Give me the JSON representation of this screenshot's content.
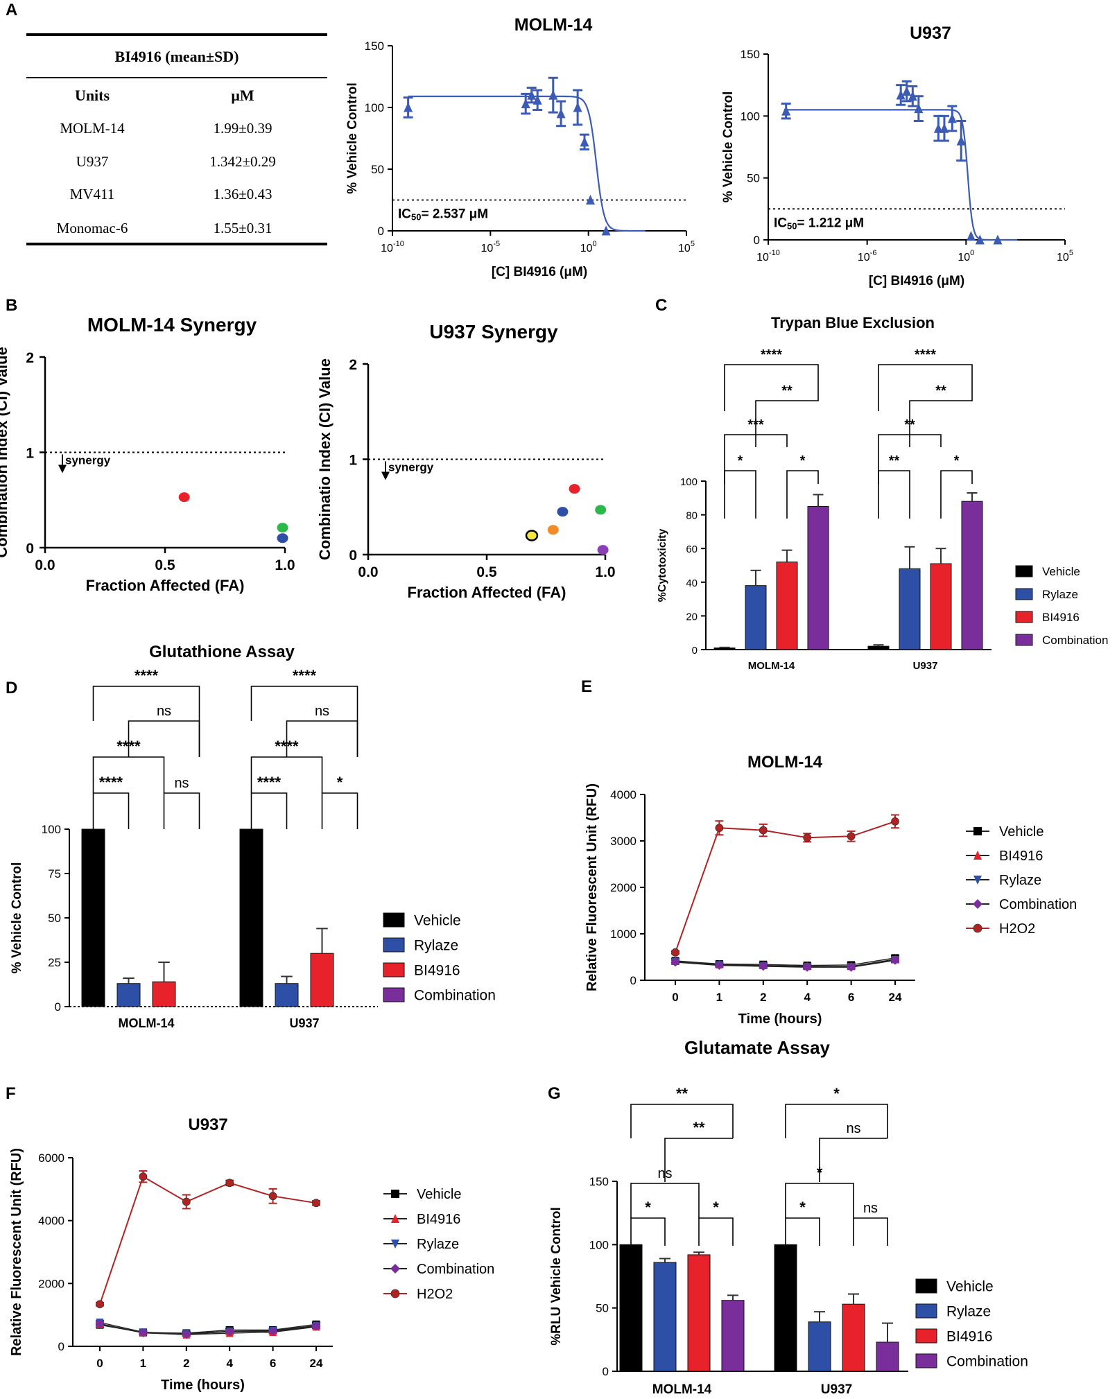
{
  "panel_labels": [
    "A",
    "B",
    "C",
    "D",
    "E",
    "F",
    "G"
  ],
  "table": {
    "title": "BI4916 (mean±SD)",
    "col_headers": [
      "Units",
      "μM"
    ],
    "rows": [
      [
        "MOLM-14",
        "1.99±0.39"
      ],
      [
        "U937",
        "1.342±0.29"
      ],
      [
        "MV411",
        "1.36±0.43"
      ],
      [
        "Monomac-6",
        "1.55±0.31"
      ]
    ]
  },
  "colors": {
    "vehicle": "#000000",
    "rylaze": "#2e4fa6",
    "bi4916": "#e8222a",
    "combination": "#7a2e9c",
    "h2o2": "#b22222",
    "curve": "#3b5bb5",
    "ci_red": "#e8222a",
    "ci_green": "#2db84b",
    "ci_blue": "#2e4fa6",
    "ci_orange": "#f28c28",
    "ci_purple": "#8a3fb8",
    "ci_yellow": "#f5e642"
  },
  "chart_data": [
    {
      "id": "A1",
      "type": "scatter",
      "title": "MOLM-14",
      "xlabel": "[C] BI4916 (μM)",
      "ylabel": "% Vehicle Control",
      "xticks": [
        "-10",
        "-5",
        "0",
        "5"
      ],
      "yticks": [
        "0",
        "50",
        "100",
        "150"
      ],
      "xlim": [
        -10,
        5
      ],
      "ylim": [
        0,
        150
      ],
      "annotation": "= 2.537 μM",
      "ic_label": "IC",
      "ic_sub": "50",
      "ref_lines": [
        25,
        0
      ],
      "curve": {
        "top": 109,
        "bottom": 0,
        "logIC50": 0.404,
        "hill": 2.2
      },
      "points": [
        {
          "x": -9.2,
          "y": 100,
          "err": 8
        },
        {
          "x": -3.2,
          "y": 103,
          "err": 8
        },
        {
          "x": -2.9,
          "y": 110,
          "err": 6
        },
        {
          "x": -2.6,
          "y": 106,
          "err": 8
        },
        {
          "x": -1.8,
          "y": 110,
          "err": 14
        },
        {
          "x": -1.4,
          "y": 95,
          "err": 10
        },
        {
          "x": -0.55,
          "y": 100,
          "err": 14
        },
        {
          "x": -0.2,
          "y": 72,
          "err": 6
        },
        {
          "x": 0.1,
          "y": 25,
          "err": 0
        },
        {
          "x": 0.9,
          "y": 0,
          "err": 0
        }
      ]
    },
    {
      "id": "A2",
      "type": "scatter",
      "title": "U937",
      "xlabel": "[C] BI4916 (μM)",
      "ylabel": "% Vehicle Control",
      "xticks": [
        "-10",
        "-6",
        "0",
        "5"
      ],
      "yticks": [
        "0",
        "50",
        "100",
        "150"
      ],
      "xlim": [
        -10,
        5
      ],
      "ylim": [
        0,
        150
      ],
      "annotation": "= 1.212 μM",
      "ic_label": "IC",
      "ic_sub": "50",
      "ref_lines": [
        25,
        0
      ],
      "curve": {
        "top": 105,
        "bottom": 0,
        "logIC50": 0.084,
        "hill": 3.5
      },
      "points": [
        {
          "x": -9.1,
          "y": 104,
          "err": 6
        },
        {
          "x": -3.3,
          "y": 117,
          "err": 8
        },
        {
          "x": -3.0,
          "y": 120,
          "err": 8
        },
        {
          "x": -2.7,
          "y": 116,
          "err": 8
        },
        {
          "x": -2.4,
          "y": 106,
          "err": 10
        },
        {
          "x": -1.4,
          "y": 90,
          "err": 10
        },
        {
          "x": -1.1,
          "y": 90,
          "err": 10
        },
        {
          "x": -0.7,
          "y": 98,
          "err": 10
        },
        {
          "x": -0.25,
          "y": 80,
          "err": 16
        },
        {
          "x": 0.25,
          "y": 3,
          "err": 0
        },
        {
          "x": 0.7,
          "y": 0,
          "err": 0
        },
        {
          "x": 1.6,
          "y": 0,
          "err": 0
        }
      ]
    },
    {
      "id": "B1",
      "type": "scatter",
      "title": "MOLM-14 Synergy",
      "xlabel": "Fraction Affected (FA)",
      "ylabel": "Combination Index (CI) Value",
      "xticks": [
        "0.0",
        "0.5",
        "1.0"
      ],
      "yticks": [
        "0",
        "1",
        "2"
      ],
      "xlim": [
        0,
        1
      ],
      "ylim": [
        0,
        2
      ],
      "ref_line": 1,
      "annotation": "synergy",
      "points": [
        {
          "x": 0.58,
          "y": 0.53,
          "color": "ci_red"
        },
        {
          "x": 0.99,
          "y": 0.21,
          "color": "ci_green"
        },
        {
          "x": 0.99,
          "y": 0.1,
          "color": "ci_blue"
        }
      ]
    },
    {
      "id": "B2",
      "type": "scatter",
      "title": "U937 Synergy",
      "xlabel": "Fraction Affected (FA)",
      "ylabel": "Combinatio Index (CI) Value",
      "xticks": [
        "0.0",
        "0.5",
        "1.0"
      ],
      "yticks": [
        "0",
        "1",
        "2"
      ],
      "xlim": [
        0,
        1
      ],
      "ylim": [
        0,
        2
      ],
      "ref_line": 1,
      "annotation": "synergy",
      "points": [
        {
          "x": 0.87,
          "y": 0.69,
          "color": "ci_red"
        },
        {
          "x": 0.98,
          "y": 0.47,
          "color": "ci_green"
        },
        {
          "x": 0.82,
          "y": 0.45,
          "color": "ci_blue"
        },
        {
          "x": 0.78,
          "y": 0.26,
          "color": "ci_orange"
        },
        {
          "x": 0.69,
          "y": 0.2,
          "color": "ci_yellow"
        },
        {
          "x": 0.99,
          "y": 0.05,
          "color": "ci_purple"
        }
      ]
    },
    {
      "id": "C",
      "type": "bar",
      "title": "Trypan Blue Exclusion",
      "xlabel": "",
      "ylabel": "%Cytotoxicity",
      "categories": [
        "MOLM-14",
        "U937"
      ],
      "yticks": [
        "0",
        "20",
        "40",
        "60",
        "80",
        "100"
      ],
      "ylim": [
        0,
        100
      ],
      "series": [
        {
          "name": "Vehicle",
          "color": "vehicle",
          "values": [
            1,
            2
          ],
          "err": [
            0.3,
            0.8
          ]
        },
        {
          "name": "Rylaze",
          "color": "rylaze",
          "values": [
            38,
            48
          ],
          "err": [
            9,
            13
          ]
        },
        {
          "name": "BI4916",
          "color": "bi4916",
          "values": [
            52,
            51
          ],
          "err": [
            7,
            9
          ]
        },
        {
          "name": "Combination",
          "color": "combination",
          "values": [
            85,
            88
          ],
          "err": [
            7,
            5
          ]
        }
      ],
      "sig": [
        [
          "****",
          "****"
        ],
        [
          "**",
          "**"
        ],
        [
          "***",
          "**"
        ],
        [
          "*",
          "**"
        ],
        [
          "*",
          "*"
        ]
      ]
    },
    {
      "id": "D",
      "type": "bar",
      "title": "Glutathione Assay",
      "xlabel": "",
      "ylabel": "% Vehicle Control",
      "categories": [
        "MOLM-14",
        "U937"
      ],
      "yticks": [
        "0",
        "25",
        "50",
        "75",
        "100"
      ],
      "ylim": [
        0,
        100
      ],
      "series": [
        {
          "name": "Vehicle",
          "color": "vehicle",
          "values": [
            100,
            100
          ],
          "err": [
            0,
            0
          ]
        },
        {
          "name": "Rylaze",
          "color": "rylaze",
          "values": [
            13,
            13
          ],
          "err": [
            3,
            4
          ]
        },
        {
          "name": "BI4916",
          "color": "bi4916",
          "values": [
            14,
            30
          ],
          "err": [
            11,
            14
          ]
        },
        {
          "name": "Combination",
          "color": "combination",
          "values": [
            0,
            0
          ],
          "err": [
            0,
            0
          ]
        }
      ],
      "sig": [
        [
          "****",
          "****"
        ],
        [
          "ns",
          "ns"
        ],
        [
          "****",
          "****"
        ],
        [
          "****",
          "****"
        ],
        [
          "ns",
          "*"
        ]
      ]
    },
    {
      "id": "E",
      "type": "line",
      "title": "MOLM-14",
      "xlabel": "Time (hours)",
      "ylabel": "Relative Fluorescent Unit (RFU)",
      "x": [
        "0",
        "1",
        "2",
        "4",
        "6",
        "24"
      ],
      "yticks": [
        "0",
        "1000",
        "2000",
        "3000",
        "4000"
      ],
      "ylim": [
        0,
        4000
      ],
      "series": [
        {
          "name": "Vehicle",
          "color": "vehicle",
          "marker": "square",
          "values": [
            420,
            350,
            340,
            320,
            330,
            480
          ],
          "err": [
            40,
            40,
            40,
            40,
            40,
            50
          ]
        },
        {
          "name": "BI4916",
          "color": "bi4916",
          "marker": "triangle",
          "values": [
            410,
            340,
            320,
            300,
            300,
            450
          ],
          "err": [
            40,
            40,
            40,
            40,
            40,
            50
          ]
        },
        {
          "name": "Rylaze",
          "color": "rylaze",
          "marker": "triangle-down",
          "values": [
            400,
            330,
            310,
            290,
            290,
            440
          ],
          "err": [
            40,
            40,
            40,
            40,
            40,
            50
          ]
        },
        {
          "name": "Combination",
          "color": "combination",
          "marker": "diamond",
          "values": [
            390,
            320,
            300,
            280,
            280,
            430
          ],
          "err": [
            40,
            40,
            40,
            40,
            40,
            50
          ]
        },
        {
          "name": "H2O2",
          "color": "h2o2",
          "marker": "circle",
          "values": [
            600,
            3280,
            3230,
            3070,
            3100,
            3420
          ],
          "err": [
            30,
            150,
            130,
            90,
            110,
            140
          ]
        }
      ]
    },
    {
      "id": "F",
      "type": "line",
      "title": "U937",
      "xlabel": "Time (hours)",
      "ylabel": "Relative Fluorescent Unit (RFU)",
      "x": [
        "0",
        "1",
        "2",
        "4",
        "6",
        "24"
      ],
      "yticks": [
        "0",
        "2000",
        "4000",
        "6000"
      ],
      "ylim": [
        0,
        6000
      ],
      "series": [
        {
          "name": "Vehicle",
          "color": "vehicle",
          "marker": "square",
          "values": [
            680,
            440,
            420,
            520,
            520,
            700
          ],
          "err": [
            60,
            50,
            50,
            50,
            50,
            60
          ]
        },
        {
          "name": "BI4916",
          "color": "bi4916",
          "marker": "triangle",
          "values": [
            700,
            430,
            370,
            420,
            450,
            620
          ],
          "err": [
            60,
            50,
            50,
            50,
            50,
            60
          ]
        },
        {
          "name": "Rylaze",
          "color": "rylaze",
          "marker": "triangle-down",
          "values": [
            760,
            450,
            400,
            480,
            500,
            660
          ],
          "err": [
            60,
            50,
            50,
            50,
            50,
            60
          ]
        },
        {
          "name": "Combination",
          "color": "combination",
          "marker": "diamond",
          "values": [
            720,
            430,
            380,
            470,
            480,
            640
          ],
          "err": [
            60,
            50,
            50,
            50,
            50,
            60
          ]
        },
        {
          "name": "H2O2",
          "color": "h2o2",
          "marker": "circle",
          "values": [
            1340,
            5400,
            4600,
            5200,
            4780,
            4560
          ],
          "err": [
            50,
            180,
            220,
            80,
            230,
            70
          ]
        }
      ]
    },
    {
      "id": "G",
      "type": "bar",
      "title": "Glutamate Assay",
      "xlabel": "",
      "ylabel": "%RLU Vehicle Control",
      "categories": [
        "MOLM-14",
        "U937"
      ],
      "yticks": [
        "0",
        "50",
        "100",
        "150"
      ],
      "ylim": [
        0,
        150
      ],
      "series": [
        {
          "name": "Vehicle",
          "color": "vehicle",
          "values": [
            100,
            100
          ],
          "err": [
            0,
            0
          ]
        },
        {
          "name": "Rylaze",
          "color": "rylaze",
          "values": [
            86,
            39
          ],
          "err": [
            3,
            8
          ]
        },
        {
          "name": "BI4916",
          "color": "bi4916",
          "values": [
            92,
            53
          ],
          "err": [
            2,
            8
          ]
        },
        {
          "name": "Combination",
          "color": "combination",
          "values": [
            56,
            23
          ],
          "err": [
            4,
            15
          ]
        }
      ],
      "sig": [
        [
          "**",
          "*"
        ],
        [
          "**",
          "ns"
        ],
        [
          "ns",
          "*"
        ],
        [
          "*",
          "*"
        ],
        [
          "*",
          "ns"
        ]
      ]
    }
  ]
}
